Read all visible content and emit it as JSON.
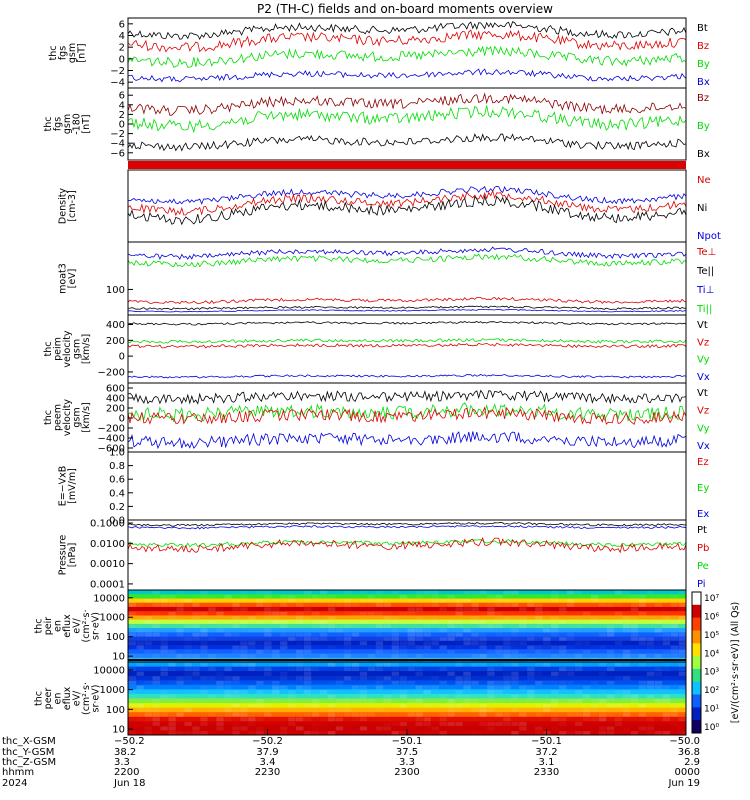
{
  "title": "P2 (TH-C) fields and on-board moments overview",
  "colors": {
    "black": "#000000",
    "red": "#dd0000",
    "green": "#00dd00",
    "blue": "#0000dd",
    "darkred": "#8b0000"
  },
  "panels": [
    {
      "id": "fgs_gsm",
      "ylabel": [
        "thc",
        "fgs",
        "gsm",
        "[nT]"
      ],
      "yticks": [
        "6",
        "4",
        "2",
        "0",
        "−2",
        "−4"
      ],
      "legend": [
        {
          "text": "Bt",
          "color": "black"
        },
        {
          "text": "Bz",
          "color": "red"
        },
        {
          "text": "By",
          "color": "green"
        },
        {
          "text": "Bx",
          "color": "blue"
        }
      ]
    },
    {
      "id": "fgs_gsm_rot",
      "ylabel": [
        "thc",
        "fgs",
        "gsm",
        "-180",
        "[nT]"
      ],
      "yticks": [
        "6",
        "4",
        "2",
        "0",
        "−2",
        "−4",
        "−6"
      ],
      "legend": [
        {
          "text": "Bz",
          "color": "darkred"
        },
        {
          "text": "By",
          "color": "green"
        },
        {
          "text": "Bx",
          "color": "black"
        }
      ]
    },
    {
      "id": "bar",
      "ylabel": [],
      "yticks": [],
      "legend": []
    },
    {
      "id": "density",
      "ylabel": [
        "Density",
        "[cm-3]"
      ],
      "yticks": [],
      "legend": [
        {
          "text": "Ne",
          "color": "red"
        },
        {
          "text": "Ni",
          "color": "black"
        },
        {
          "text": "Npot",
          "color": "blue"
        }
      ]
    },
    {
      "id": "temp",
      "ylabel": [
        "moat3",
        "[eV]"
      ],
      "yticks": [
        "100"
      ],
      "legend": [
        {
          "text": "Te⊥",
          "color": "red"
        },
        {
          "text": "Te||",
          "color": "black"
        },
        {
          "text": "Ti⊥",
          "color": "blue"
        },
        {
          "text": "Ti||",
          "color": "green"
        }
      ]
    },
    {
      "id": "peim_vel",
      "ylabel": [
        "thc",
        "peim",
        "velocity",
        "gsm",
        "[km/s]"
      ],
      "yticks": [
        "400",
        "200",
        "0",
        "−200"
      ],
      "legend": [
        {
          "text": "Vt",
          "color": "black"
        },
        {
          "text": "Vz",
          "color": "red"
        },
        {
          "text": "Vy",
          "color": "green"
        },
        {
          "text": "Vx",
          "color": "blue"
        }
      ]
    },
    {
      "id": "peem_vel",
      "ylabel": [
        "thc",
        "peem",
        "velocity",
        "gsm",
        "[km/s]"
      ],
      "yticks": [
        "600",
        "400",
        "200",
        "0",
        "−200",
        "−400",
        "−600"
      ],
      "legend": [
        {
          "text": "Vt",
          "color": "black"
        },
        {
          "text": "Vz",
          "color": "red"
        },
        {
          "text": "Vy",
          "color": "green"
        },
        {
          "text": "Vx",
          "color": "blue"
        }
      ]
    },
    {
      "id": "efield",
      "ylabel": [
        "E=−VxB",
        "[mV/m]"
      ],
      "yticks": [
        "1.0",
        "0.8",
        "0.6",
        "0.4",
        "0.2",
        "0.0"
      ],
      "legend": [
        {
          "text": "Ez",
          "color": "red"
        },
        {
          "text": "Ey",
          "color": "green"
        },
        {
          "text": "Ex",
          "color": "blue"
        }
      ]
    },
    {
      "id": "pressure",
      "ylabel": [
        "Pressure",
        "[nPa]"
      ],
      "yticks": [
        "0.1000",
        "0.0100",
        "0.0010",
        "0.0001"
      ],
      "legend": [
        {
          "text": "Pt",
          "color": "black"
        },
        {
          "text": "Pb",
          "color": "red"
        },
        {
          "text": "Pe",
          "color": "green"
        },
        {
          "text": "Pi",
          "color": "blue"
        }
      ]
    },
    {
      "id": "peir_spec",
      "ylabel": [
        "thc",
        "peir",
        "en",
        "eflux",
        "eV/",
        "(cm²·s·",
        "sr·eV)"
      ],
      "yticks": [
        "10000",
        "1000",
        "100",
        "10"
      ],
      "legend": []
    },
    {
      "id": "peer_spec",
      "ylabel": [
        "thc",
        "peer",
        "en",
        "eflux",
        "eV/",
        "(cm²·s·",
        "sr·eV)"
      ],
      "yticks": [
        "10000",
        "1000",
        "100",
        "10"
      ],
      "legend": []
    }
  ],
  "colorbar": {
    "label": "[eV/(cm²·s·sr·eV)] (All Qs)",
    "ticks": [
      "10⁷",
      "10⁶",
      "10⁵",
      "10⁴",
      "10³",
      "10²",
      "10¹",
      "10⁰"
    ]
  },
  "xaxis": {
    "row_labels": [
      "thc_X-GSM",
      "thc_Y-GSM",
      "thc_Z-GSM",
      "hhmm",
      "2024"
    ],
    "ticks": [
      {
        "rows": [
          "−50.2",
          "38.2",
          "3.3",
          "2200",
          "Jun 18"
        ]
      },
      {
        "rows": [
          "−50.2",
          "37.9",
          "3.4",
          "2230",
          ""
        ]
      },
      {
        "rows": [
          "−50.1",
          "37.5",
          "3.3",
          "2300",
          ""
        ]
      },
      {
        "rows": [
          "−50.1",
          "37.2",
          "3.1",
          "2330",
          ""
        ]
      },
      {
        "rows": [
          "−50.0",
          "36.8",
          "2.9",
          "0000",
          "Jun 19"
        ]
      }
    ]
  },
  "chart_data": [
    {
      "type": "line",
      "title": "P2 (TH-C) fields and on-board moments overview",
      "ylabel": "thc fgs gsm [nT]",
      "ylim": [
        -5,
        7
      ],
      "series": [
        {
          "name": "Bt",
          "values_approx": [
            5,
            5.5,
            4.5,
            5,
            5.5,
            4.5,
            6,
            5,
            5,
            5
          ]
        },
        {
          "name": "Bz",
          "values_approx": [
            3,
            2,
            4,
            1,
            3,
            2,
            4,
            3,
            3,
            3
          ]
        },
        {
          "name": "By",
          "values_approx": [
            1,
            0,
            2,
            -1,
            1,
            0,
            1,
            0,
            1,
            0
          ]
        },
        {
          "name": "Bx",
          "values_approx": [
            -3,
            -3.5,
            -3,
            -2.5,
            -3,
            -3.5,
            -3,
            -3,
            -3,
            -3
          ]
        }
      ]
    },
    {
      "type": "line",
      "ylabel": "thc fgs gsm -180 [nT]",
      "ylim": [
        -7,
        7
      ],
      "series": [
        {
          "name": "Bz",
          "values_approx": [
            4,
            5,
            4,
            3,
            5,
            4,
            5,
            4,
            4,
            4
          ]
        },
        {
          "name": "By",
          "values_approx": [
            2,
            1,
            3,
            0,
            2,
            1,
            2,
            1,
            2,
            2
          ]
        },
        {
          "name": "Bx",
          "values_approx": [
            -4,
            -5,
            -4,
            -3.5,
            -5,
            -4.5,
            -4,
            -4,
            -4,
            -4
          ]
        }
      ]
    },
    {
      "type": "line",
      "ylabel": "Density [cm-3]",
      "series": [
        {
          "name": "Ne"
        },
        {
          "name": "Ni"
        },
        {
          "name": "Npot"
        }
      ]
    },
    {
      "type": "line",
      "ylabel": "moat3 [eV]",
      "series": [
        {
          "name": "Te⊥"
        },
        {
          "name": "Te||"
        },
        {
          "name": "Ti⊥"
        },
        {
          "name": "Ti||"
        }
      ]
    },
    {
      "type": "line",
      "ylabel": "thc peim velocity gsm [km/s]",
      "ylim": [
        -300,
        500
      ],
      "series": [
        {
          "name": "Vt",
          "values_approx": [
            380,
            380,
            380,
            380,
            380
          ]
        },
        {
          "name": "Vz",
          "values_approx": [
            0,
            0,
            0,
            0,
            0
          ]
        },
        {
          "name": "Vy",
          "values_approx": [
            20,
            20,
            20,
            20,
            20
          ]
        },
        {
          "name": "Vx",
          "values_approx": [
            -380,
            -380,
            -380,
            -380,
            -380
          ]
        }
      ]
    },
    {
      "type": "line",
      "ylabel": "thc peem velocity gsm [km/s]",
      "ylim": [
        -650,
        650
      ],
      "series": [
        {
          "name": "Vt",
          "values_approx": [
            430,
            430,
            430,
            430,
            430
          ]
        },
        {
          "name": "Vz",
          "values_approx": [
            0,
            0,
            0,
            0,
            0
          ]
        },
        {
          "name": "Vy",
          "values_approx": [
            50,
            50,
            50,
            50,
            50
          ]
        },
        {
          "name": "Vx",
          "values_approx": [
            -430,
            -430,
            -430,
            -430,
            -430
          ]
        }
      ]
    },
    {
      "type": "line",
      "ylabel": "E=−VxB [mV/m]",
      "ylim": [
        0,
        1
      ],
      "series": [
        {
          "name": "Ez"
        },
        {
          "name": "Ey"
        },
        {
          "name": "Ex"
        }
      ]
    },
    {
      "type": "line",
      "ylabel": "Pressure [nPa]",
      "scale": "log",
      "ylim": [
        0.0001,
        0.1
      ],
      "series": [
        {
          "name": "Pt",
          "values_approx": [
            0.09,
            0.09,
            0.09,
            0.09,
            0.09
          ]
        },
        {
          "name": "Pb",
          "values_approx": [
            0.012,
            0.012,
            0.012,
            0.012,
            0.012
          ]
        },
        {
          "name": "Pe",
          "values_approx": [
            0.015,
            0.015,
            0.015,
            0.015,
            0.015
          ]
        }
      ]
    },
    {
      "type": "heatmap",
      "ylabel": "thc peir en eflux",
      "scale": "log",
      "ylim": [
        5,
        30000
      ]
    },
    {
      "type": "heatmap",
      "ylabel": "thc peer en eflux",
      "scale": "log",
      "ylim": [
        5,
        30000
      ]
    }
  ]
}
